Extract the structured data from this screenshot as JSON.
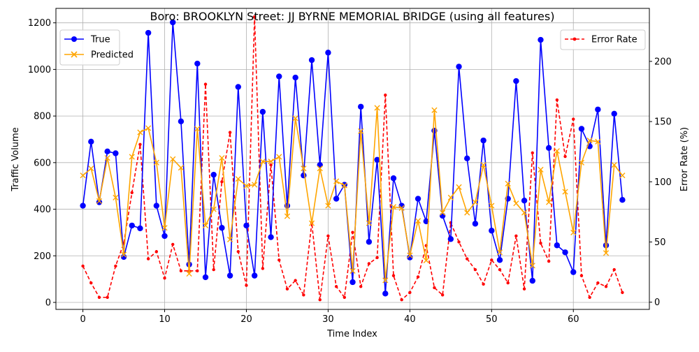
{
  "chart_data": {
    "type": "line",
    "title": "Boro: BROOKLYN Street: JJ BYRNE MEMORIAL BRIDGE (using all features)",
    "xlabel": "Time Index",
    "ylabel": "Traffic Volume",
    "y2label": "Error Rate (%)",
    "xlim": [
      -3.3,
      69.3
    ],
    "ylim": [
      -30,
      1262
    ],
    "y2lim": [
      -6,
      244
    ],
    "x_ticks": [
      0,
      10,
      20,
      30,
      40,
      50,
      60
    ],
    "y_ticks": [
      0,
      200,
      400,
      600,
      800,
      1000,
      1200
    ],
    "y2_ticks": [
      0,
      50,
      100,
      150,
      200
    ],
    "x_tick_labels": [
      "0",
      "10",
      "20",
      "30",
      "40",
      "50",
      "60"
    ],
    "y_tick_labels": [
      "0",
      "200",
      "400",
      "600",
      "800",
      "1000",
      "1200"
    ],
    "y2_tick_labels": [
      "0",
      "50",
      "100",
      "150",
      "200"
    ],
    "grid": true,
    "legend_left": {
      "placement": "top-left",
      "entries": [
        "True",
        "Predicted"
      ]
    },
    "legend_right": {
      "placement": "top-right",
      "entries": [
        "Error Rate"
      ]
    },
    "colors": {
      "true": "#0000ff",
      "predicted": "#ffa500",
      "error": "#ff0000",
      "grid": "#b0b0b0"
    },
    "series": [
      {
        "name": "True",
        "axis": "left",
        "marker": "circle",
        "values": [
          415,
          690,
          430,
          648,
          640,
          195,
          330,
          318,
          1157,
          415,
          285,
          1202,
          777,
          163,
          1025,
          108,
          548,
          320,
          115,
          925,
          330,
          115,
          818,
          280,
          970,
          415,
          965,
          545,
          1040,
          590,
          1072,
          445,
          505,
          87,
          840,
          260,
          612,
          38,
          533,
          415,
          193,
          445,
          348,
          737,
          372,
          272,
          1012,
          618,
          338,
          695,
          308,
          182,
          445,
          950,
          437,
          93,
          1127,
          663,
          245,
          215,
          130,
          745,
          670,
          828,
          245,
          810,
          440
        ]
      },
      {
        "name": "Predicted",
        "axis": "left",
        "marker": "x",
        "values": [
          545,
          575,
          435,
          620,
          450,
          205,
          625,
          730,
          748,
          600,
          320,
          615,
          578,
          123,
          745,
          330,
          400,
          620,
          270,
          530,
          500,
          505,
          605,
          605,
          625,
          370,
          790,
          575,
          340,
          575,
          415,
          520,
          502,
          135,
          735,
          340,
          835,
          95,
          410,
          405,
          202,
          350,
          180,
          825,
          385,
          450,
          495,
          385,
          430,
          590,
          415,
          215,
          510,
          425,
          385,
          158,
          570,
          430,
          650,
          475,
          300,
          600,
          695,
          690,
          212,
          590,
          545
        ]
      },
      {
        "name": "Error Rate",
        "axis": "right",
        "marker": "dot",
        "style": "dashed",
        "values": [
          30,
          16,
          4,
          4,
          30,
          49,
          91,
          131,
          36,
          42,
          20,
          48,
          26,
          26,
          26,
          181,
          27,
          100,
          141,
          42,
          14,
          237,
          28,
          114,
          35,
          11,
          18,
          6,
          66,
          2,
          55,
          13,
          4,
          58,
          13,
          32,
          37,
          172,
          22,
          2,
          8,
          21,
          47,
          12,
          6,
          66,
          50,
          36,
          27,
          15,
          35,
          27,
          16,
          55,
          11,
          124,
          49,
          34,
          168,
          121,
          152,
          22,
          4,
          16,
          13,
          27,
          8
        ]
      }
    ]
  }
}
